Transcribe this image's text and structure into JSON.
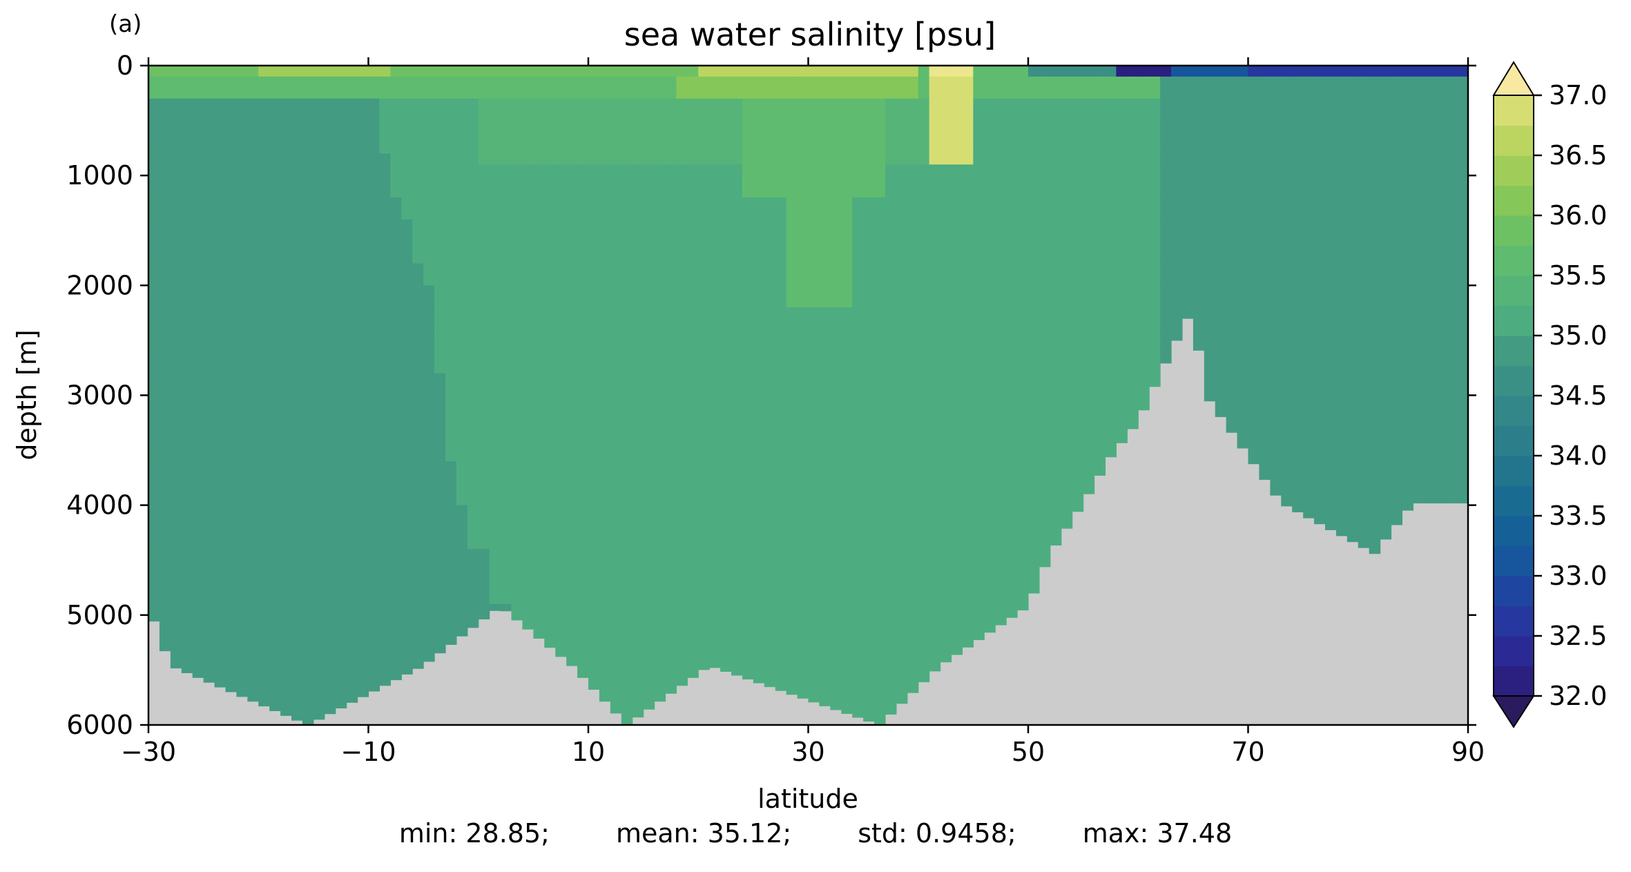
{
  "chart_data": {
    "type": "heatmap",
    "panel_label": "(a)",
    "title": "sea water salinity [psu]",
    "xlabel": "latitude",
    "ylabel": "depth [m]",
    "xlim": [
      -30,
      90
    ],
    "ylim": [
      0,
      6000
    ],
    "y_inverted": true,
    "xticks": [
      -30,
      -10,
      10,
      30,
      50,
      70,
      90
    ],
    "xtick_labels": [
      "−30",
      "−10",
      "10",
      "30",
      "50",
      "70",
      "90"
    ],
    "yticks": [
      0,
      1000,
      2000,
      3000,
      4000,
      5000,
      6000
    ],
    "ytick_labels": [
      "0",
      "1000",
      "2000",
      "3000",
      "4000",
      "5000",
      "6000"
    ],
    "colorbar": {
      "colormap": "haline-like (dark blue → teal → green → pale yellow)",
      "vmin": 32.0,
      "vmax": 37.0,
      "level_step": 0.25,
      "extend": "both",
      "ticks": [
        32.0,
        32.5,
        33.0,
        33.5,
        34.0,
        34.5,
        35.0,
        35.5,
        36.0,
        36.5,
        37.0
      ],
      "tick_labels": [
        "32.0",
        "32.5",
        "33.0",
        "33.5",
        "34.0",
        "34.5",
        "35.0",
        "35.5",
        "36.0",
        "36.5",
        "37.0"
      ],
      "stops": [
        {
          "v": 31.75,
          "c": "#2a1b5e"
        },
        {
          "v": 32.0,
          "c": "#2b1f80"
        },
        {
          "v": 32.25,
          "c": "#2b2a95"
        },
        {
          "v": 32.5,
          "c": "#26379f"
        },
        {
          "v": 32.75,
          "c": "#1e46a0"
        },
        {
          "v": 33.0,
          "c": "#17559d"
        },
        {
          "v": 33.25,
          "c": "#156197"
        },
        {
          "v": 33.5,
          "c": "#1a6b91"
        },
        {
          "v": 33.75,
          "c": "#22758d"
        },
        {
          "v": 34.0,
          "c": "#2b7e8a"
        },
        {
          "v": 34.25,
          "c": "#338788"
        },
        {
          "v": 34.5,
          "c": "#3b9086"
        },
        {
          "v": 34.75,
          "c": "#439b82"
        },
        {
          "v": 35.0,
          "c": "#4dad80"
        },
        {
          "v": 35.25,
          "c": "#56b479"
        },
        {
          "v": 35.5,
          "c": "#5fbb6f"
        },
        {
          "v": 35.75,
          "c": "#6ec163"
        },
        {
          "v": 36.0,
          "c": "#86c759"
        },
        {
          "v": 36.25,
          "c": "#a0cd59"
        },
        {
          "v": 36.5,
          "c": "#bcd561"
        },
        {
          "v": 36.75,
          "c": "#d6de73"
        },
        {
          "v": 37.0,
          "c": "#ece68c"
        },
        {
          "v": 37.25,
          "c": "#f7e8a2"
        }
      ]
    },
    "land_mask_color": "#cccccc",
    "salinity_regions_psu": [
      {
        "region": "western deep water (lat -30 to -10)",
        "value": 34.75
      },
      {
        "region": "central deep water (lat -5 to 55)",
        "value": 35.0
      },
      {
        "region": "northern deep water (lat 62 to 90, below 200 m)",
        "value": 34.75
      },
      {
        "region": "thermocline (lat 0 to 45, 100-800 m)",
        "value": 35.25
      },
      {
        "region": "subtropical tongue (lat 25 to 35, 300-2200 m)",
        "value": 35.5
      },
      {
        "region": "outflow plume (lat 41 to 44, 0-900 m)",
        "value": 36.75
      },
      {
        "region": "near-surface subtropics (lat 20 to 40, 0-100 m)",
        "value": 36.5
      },
      {
        "region": "surface lat -20 to -10",
        "value": 36.25
      },
      {
        "region": "arctic surface (lat 75 to 90, 0-100 m)",
        "value": 32.5
      },
      {
        "region": "arctic surface minimum (lat 58 to 63, 0-100 m)",
        "value": 32.0
      }
    ],
    "bathymetry_m": {
      "lat": [
        -30,
        -28,
        -15.5,
        -5,
        2,
        8.5,
        13.5,
        21,
        36.5,
        42,
        50,
        52,
        55,
        57.5,
        60,
        63,
        65,
        66,
        73,
        81.5,
        85,
        90
      ],
      "depth": [
        4920,
        5460,
        6000,
        5460,
        4920,
        5460,
        6000,
        5460,
        6000,
        5460,
        4920,
        4440,
        3980,
        3560,
        3240,
        2600,
        2200,
        2980,
        3980,
        4440,
        3980,
        3980
      ]
    },
    "stats": {
      "min": "28.85",
      "mean": "35.12",
      "std": "0.9458",
      "max": "37.48"
    }
  },
  "footer": {
    "min": "min: 28.85;",
    "mean": "mean: 35.12;",
    "std": "std: 0.9458;",
    "max": "max: 37.48"
  }
}
